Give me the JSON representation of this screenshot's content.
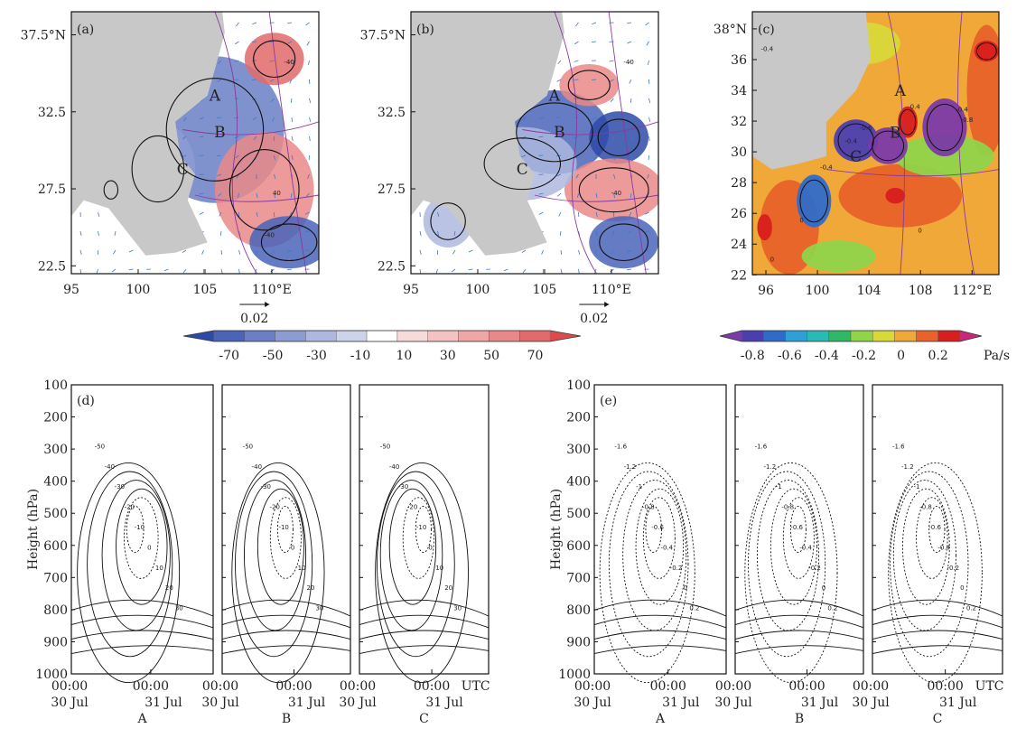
{
  "chart_data": [
    {
      "id": "a",
      "type": "heatmap",
      "panel_label": "(a)",
      "x_ticks": [
        "95",
        "100",
        "105",
        "110°E"
      ],
      "y_ticks": [
        "37.5°N",
        "32.5",
        "27.5",
        "22.5"
      ],
      "xlim": [
        95,
        113.5
      ],
      "ylim": [
        22,
        39
      ],
      "point_labels": [
        "A",
        "B",
        "C"
      ],
      "contour_labels": [
        "-40",
        "40",
        "-40"
      ],
      "vector_reference": "0.02",
      "colorbar": "diverging_70"
    },
    {
      "id": "b",
      "type": "heatmap",
      "panel_label": "(b)",
      "x_ticks": [
        "95",
        "100",
        "105",
        "110°E"
      ],
      "y_ticks": [
        "37.5°N",
        "32.5",
        "27.5",
        "22.5"
      ],
      "xlim": [
        95,
        113.5
      ],
      "ylim": [
        22,
        39
      ],
      "point_labels": [
        "A",
        "B",
        "C"
      ],
      "contour_labels": [
        "-40",
        "-40"
      ],
      "vector_reference": "0.02",
      "colorbar": "diverging_70"
    },
    {
      "id": "c",
      "type": "heatmap",
      "panel_label": "(c)",
      "x_ticks": [
        "96",
        "100",
        "104",
        "108",
        "112°E"
      ],
      "y_ticks": [
        "38°N",
        "36",
        "34",
        "32",
        "30",
        "28",
        "26",
        "24",
        "22"
      ],
      "xlim": [
        95,
        114
      ],
      "ylim": [
        22,
        39
      ],
      "point_labels": [
        "A",
        "B",
        "C"
      ],
      "contour_labels": [
        "-0.4",
        "-0.6",
        "-0.4",
        "0.4",
        "-0.4",
        "-0.8",
        "0",
        "0",
        "-0.4",
        "0"
      ],
      "colorbar": "sequential_08"
    },
    {
      "id": "d",
      "type": "line",
      "panel_label": "(d)",
      "ylabel": "Height (hPa)",
      "y_ticks": [
        "100",
        "200",
        "300",
        "400",
        "500",
        "600",
        "700",
        "800",
        "900",
        "1000"
      ],
      "ylim": [
        1000,
        100
      ],
      "subpanels": [
        "A",
        "B",
        "C"
      ],
      "x_tick_rows": [
        [
          "00:00",
          "30 Jul"
        ],
        [
          "00:00",
          "31 Jul"
        ]
      ],
      "time_unit": "UTC",
      "contour_levels": [
        -50,
        -40,
        -30,
        -20,
        -10,
        0,
        10,
        20,
        30
      ]
    },
    {
      "id": "e",
      "type": "line",
      "panel_label": "(e)",
      "ylabel": "Height (hPa)",
      "y_ticks": [
        "100",
        "200",
        "300",
        "400",
        "500",
        "600",
        "700",
        "800",
        "900",
        "1000"
      ],
      "ylim": [
        1000,
        100
      ],
      "subpanels": [
        "A",
        "B",
        "C"
      ],
      "x_tick_rows": [
        [
          "00:00",
          "30 Jul"
        ],
        [
          "00:00",
          "31 Jul"
        ]
      ],
      "time_unit": "UTC",
      "contour_levels": [
        -1.6,
        -1.2,
        -1.0,
        -0.8,
        -0.6,
        -0.4,
        -0.2,
        0,
        0.2
      ]
    }
  ],
  "colorbars": {
    "diverging_70": {
      "ticks": [
        "-70",
        "-50",
        "-30",
        "-10",
        "10",
        "30",
        "50",
        "70"
      ],
      "colors": [
        "#2e4aa8",
        "#4a64b8",
        "#6a7fc6",
        "#8d9bd3",
        "#aeb8df",
        "#cdd3ea",
        "#ffffff",
        "#f7dbdb",
        "#f3c2c2",
        "#eea6a6",
        "#e98888",
        "#e26a6a",
        "#db4c4c"
      ]
    },
    "sequential_08": {
      "ticks": [
        "-0.8",
        "-0.6",
        "-0.4",
        "-0.2",
        "0",
        "0.2"
      ],
      "unit": "Pa/s",
      "colors": [
        "#7a3aa8",
        "#4b3fb0",
        "#2f6cc8",
        "#2f9fd6",
        "#2bb9b5",
        "#30b866",
        "#8fd44a",
        "#d8d83a",
        "#f0a838",
        "#e8622a",
        "#d81e1e",
        "#c8287a"
      ]
    }
  }
}
